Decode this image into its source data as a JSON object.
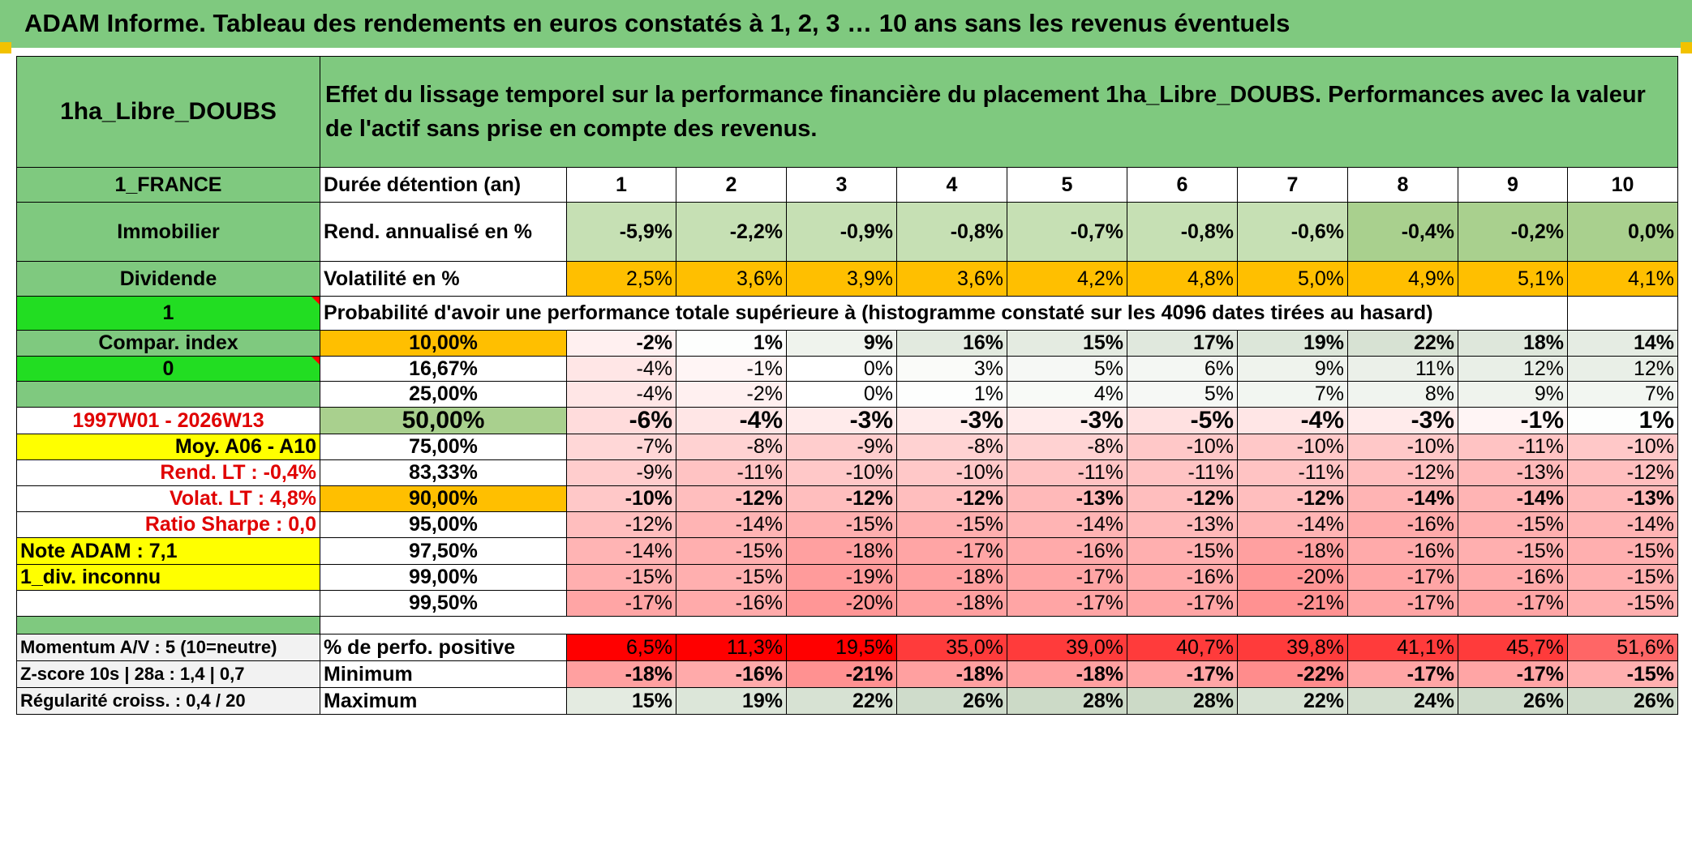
{
  "title": "ADAM Informe. Tableau des rendements en euros constatés à 1, 2, 3 … 10 ans sans les revenus éventuels",
  "header": {
    "asset_name": "1ha_Libre_DOUBS",
    "description": "Effet du lissage temporel sur la performance financière du placement 1ha_Libre_DOUBS. Performances avec la valeur de l'actif sans prise en compte des revenus."
  },
  "left_panel": {
    "country": "1_FRANCE",
    "category": "Immobilier",
    "type": "Dividende",
    "flag1": "1",
    "compar_index": "Compar. index",
    "flag0": "0",
    "period": "1997W01 - 2026W13",
    "moy": "Moy. A06 - A10",
    "rend_lt": "Rend. LT :   -0,4%",
    "volat_lt": "Volat. LT :   4,8%",
    "sharpe": "Ratio Sharpe :    0,0",
    "note": "Note ADAM : 7,1",
    "div": "1_div. inconnu",
    "momentum": "Momentum A/V : 5 (10=neutre)",
    "zscore": "Z-score 10s | 28a : 1,4 | 0,7",
    "regularite": "Régularité croiss. : 0,4 / 20"
  },
  "labels": {
    "duree": "Durée détention (an)",
    "rend": "Rend. annualisé en %",
    "vol": "Volatilité en %",
    "proba": "Probabilité d'avoir une performance totale supérieure à (histogramme constaté sur les 4096 dates tirées au hasard)",
    "pos": "% de perfo. positive",
    "min": "Minimum",
    "max": "Maximum"
  },
  "years": [
    "1",
    "2",
    "3",
    "4",
    "5",
    "6",
    "7",
    "8",
    "9",
    "10"
  ],
  "rend": [
    "-5,9%",
    "-2,2%",
    "-0,9%",
    "-0,8%",
    "-0,7%",
    "-0,8%",
    "-0,6%",
    "-0,4%",
    "-0,2%",
    "0,0%"
  ],
  "vol": [
    "2,5%",
    "3,6%",
    "3,9%",
    "3,6%",
    "4,2%",
    "4,8%",
    "5,0%",
    "4,9%",
    "5,1%",
    "4,1%"
  ],
  "quantiles": [
    {
      "p": "10,00%",
      "v": [
        "-2%",
        "1%",
        "9%",
        "16%",
        "15%",
        "17%",
        "19%",
        "22%",
        "18%",
        "14%"
      ]
    },
    {
      "p": "16,67%",
      "v": [
        "-4%",
        "-1%",
        "0%",
        "3%",
        "5%",
        "6%",
        "9%",
        "11%",
        "12%",
        "12%"
      ]
    },
    {
      "p": "25,00%",
      "v": [
        "-4%",
        "-2%",
        "0%",
        "1%",
        "4%",
        "5%",
        "7%",
        "8%",
        "9%",
        "7%"
      ]
    },
    {
      "p": "50,00%",
      "v": [
        "-6%",
        "-4%",
        "-3%",
        "-3%",
        "-3%",
        "-5%",
        "-4%",
        "-3%",
        "-1%",
        "1%"
      ]
    },
    {
      "p": "75,00%",
      "v": [
        "-7%",
        "-8%",
        "-9%",
        "-8%",
        "-8%",
        "-10%",
        "-10%",
        "-10%",
        "-11%",
        "-10%"
      ]
    },
    {
      "p": "83,33%",
      "v": [
        "-9%",
        "-11%",
        "-10%",
        "-10%",
        "-11%",
        "-11%",
        "-11%",
        "-12%",
        "-13%",
        "-12%"
      ]
    },
    {
      "p": "90,00%",
      "v": [
        "-10%",
        "-12%",
        "-12%",
        "-12%",
        "-13%",
        "-12%",
        "-12%",
        "-14%",
        "-14%",
        "-13%"
      ]
    },
    {
      "p": "95,00%",
      "v": [
        "-12%",
        "-14%",
        "-15%",
        "-15%",
        "-14%",
        "-13%",
        "-14%",
        "-16%",
        "-15%",
        "-14%"
      ]
    },
    {
      "p": "97,50%",
      "v": [
        "-14%",
        "-15%",
        "-18%",
        "-17%",
        "-16%",
        "-15%",
        "-18%",
        "-16%",
        "-15%",
        "-15%"
      ]
    },
    {
      "p": "99,00%",
      "v": [
        "-15%",
        "-15%",
        "-19%",
        "-18%",
        "-17%",
        "-16%",
        "-20%",
        "-17%",
        "-16%",
        "-15%"
      ]
    },
    {
      "p": "99,50%",
      "v": [
        "-17%",
        "-16%",
        "-20%",
        "-18%",
        "-17%",
        "-17%",
        "-21%",
        "-17%",
        "-17%",
        "-15%"
      ]
    }
  ],
  "pos": [
    "6,5%",
    "11,3%",
    "19,5%",
    "35,0%",
    "39,0%",
    "40,7%",
    "39,8%",
    "41,1%",
    "45,7%",
    "51,6%"
  ],
  "min": [
    "-18%",
    "-16%",
    "-21%",
    "-18%",
    "-18%",
    "-17%",
    "-22%",
    "-17%",
    "-17%",
    "-15%"
  ],
  "max": [
    "15%",
    "19%",
    "22%",
    "26%",
    "28%",
    "28%",
    "22%",
    "24%",
    "26%",
    "26%"
  ],
  "colors": {
    "header_green": "#7fc97f",
    "bright_green": "#22dd22",
    "yellow": "#ffff00",
    "orange": "#ffbf00",
    "red_text": "#e00000"
  }
}
